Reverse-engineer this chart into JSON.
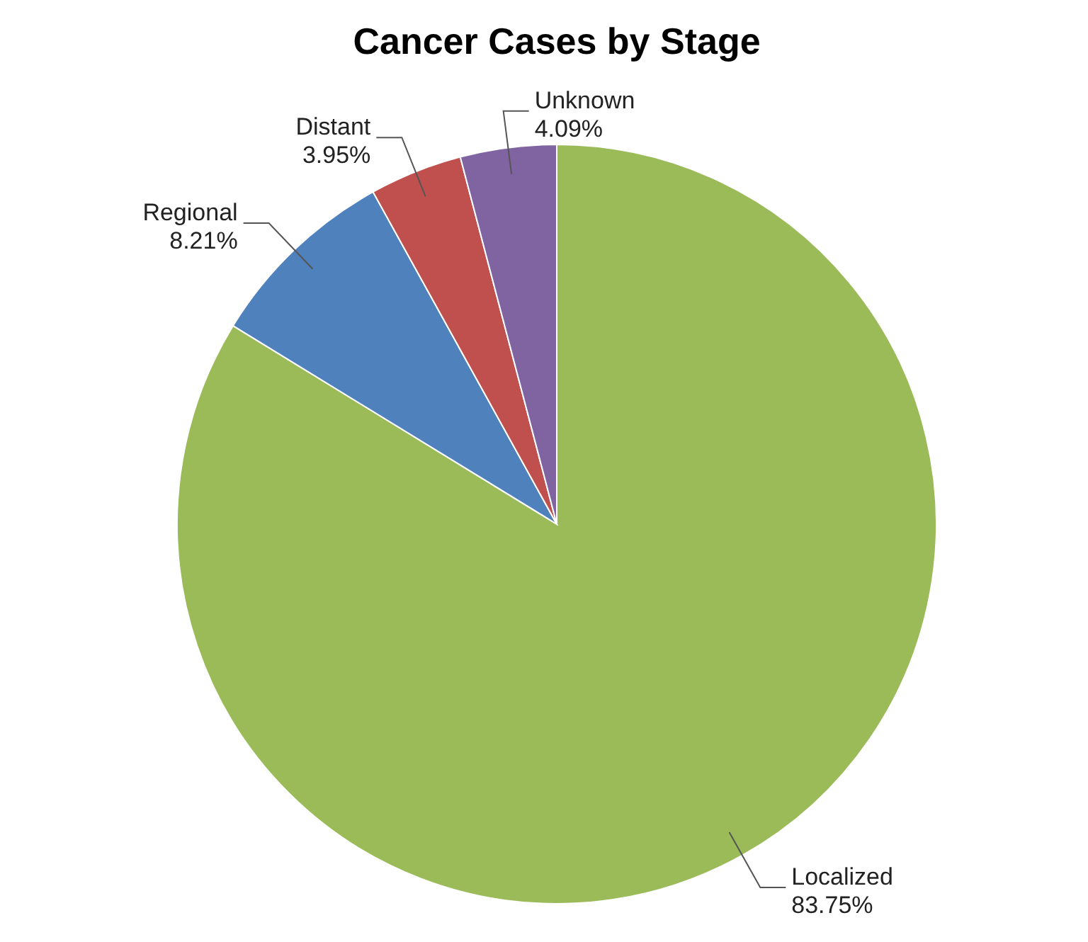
{
  "chart_data": {
    "type": "pie",
    "title": "Cancer Cases by Stage",
    "categories": [
      "Localized",
      "Regional",
      "Distant",
      "Unknown"
    ],
    "values": [
      83.75,
      8.21,
      3.95,
      4.09
    ],
    "value_labels": [
      "83.75%",
      "8.21%",
      "3.95%",
      "4.09%"
    ],
    "colors": [
      "#9bbb59",
      "#4f81bd",
      "#c0504d",
      "#8064a2"
    ]
  }
}
